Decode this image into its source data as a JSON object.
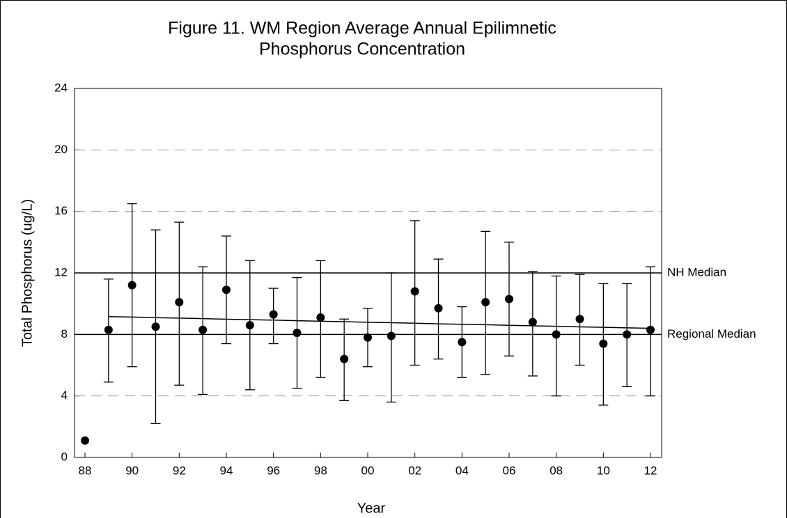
{
  "chart_data": {
    "type": "errorbar",
    "title": [
      "Figure 11. WM Region Average Annual Epilimnetic",
      "Phosphorus Concentration"
    ],
    "x_label": "Year",
    "y_label": "Total Phosphorus (ug/L)",
    "categories": [
      "88",
      null,
      "90",
      null,
      "92",
      null,
      "94",
      null,
      "96",
      null,
      "98",
      null,
      "00",
      null,
      "02",
      null,
      "04",
      null,
      "06",
      null,
      "08",
      null,
      "10",
      null,
      "12"
    ],
    "values": [
      1.1,
      8.3,
      11.2,
      8.5,
      10.1,
      8.3,
      10.9,
      8.6,
      9.3,
      8.1,
      9.1,
      6.4,
      7.8,
      7.9,
      10.8,
      9.7,
      7.5,
      10.1,
      10.3,
      8.8,
      8.0,
      9.0,
      7.4,
      8.0,
      8.3
    ],
    "lower": [
      null,
      4.9,
      5.9,
      2.2,
      4.7,
      4.1,
      7.4,
      4.4,
      7.4,
      4.5,
      5.2,
      3.7,
      5.9,
      3.6,
      6.0,
      6.4,
      5.2,
      5.4,
      6.6,
      5.3,
      4.0,
      6.0,
      3.4,
      4.6,
      4.0
    ],
    "upper": [
      null,
      11.6,
      16.5,
      14.8,
      15.3,
      12.4,
      14.4,
      12.8,
      11.0,
      11.7,
      12.8,
      9.0,
      9.7,
      12.0,
      15.4,
      12.9,
      9.8,
      14.7,
      14.0,
      12.1,
      11.8,
      11.9,
      11.3,
      11.3,
      12.4
    ],
    "trend_line": [
      null,
      9.16,
      9.13,
      9.09,
      9.06,
      9.03,
      8.99,
      8.96,
      8.93,
      8.89,
      8.86,
      8.83,
      8.79,
      8.76,
      8.73,
      8.69,
      8.66,
      8.63,
      8.59,
      8.56,
      8.53,
      8.49,
      8.46,
      8.43,
      8.4
    ],
    "reference_lines": [
      {
        "label": "NH Median",
        "value": 12
      },
      {
        "label": "Regional Median",
        "value": 8
      }
    ],
    "color": "#000000",
    "ylim": [
      0,
      24
    ],
    "yticks": [
      0,
      4,
      8,
      12,
      16,
      20,
      24
    ],
    "grid": true
  }
}
